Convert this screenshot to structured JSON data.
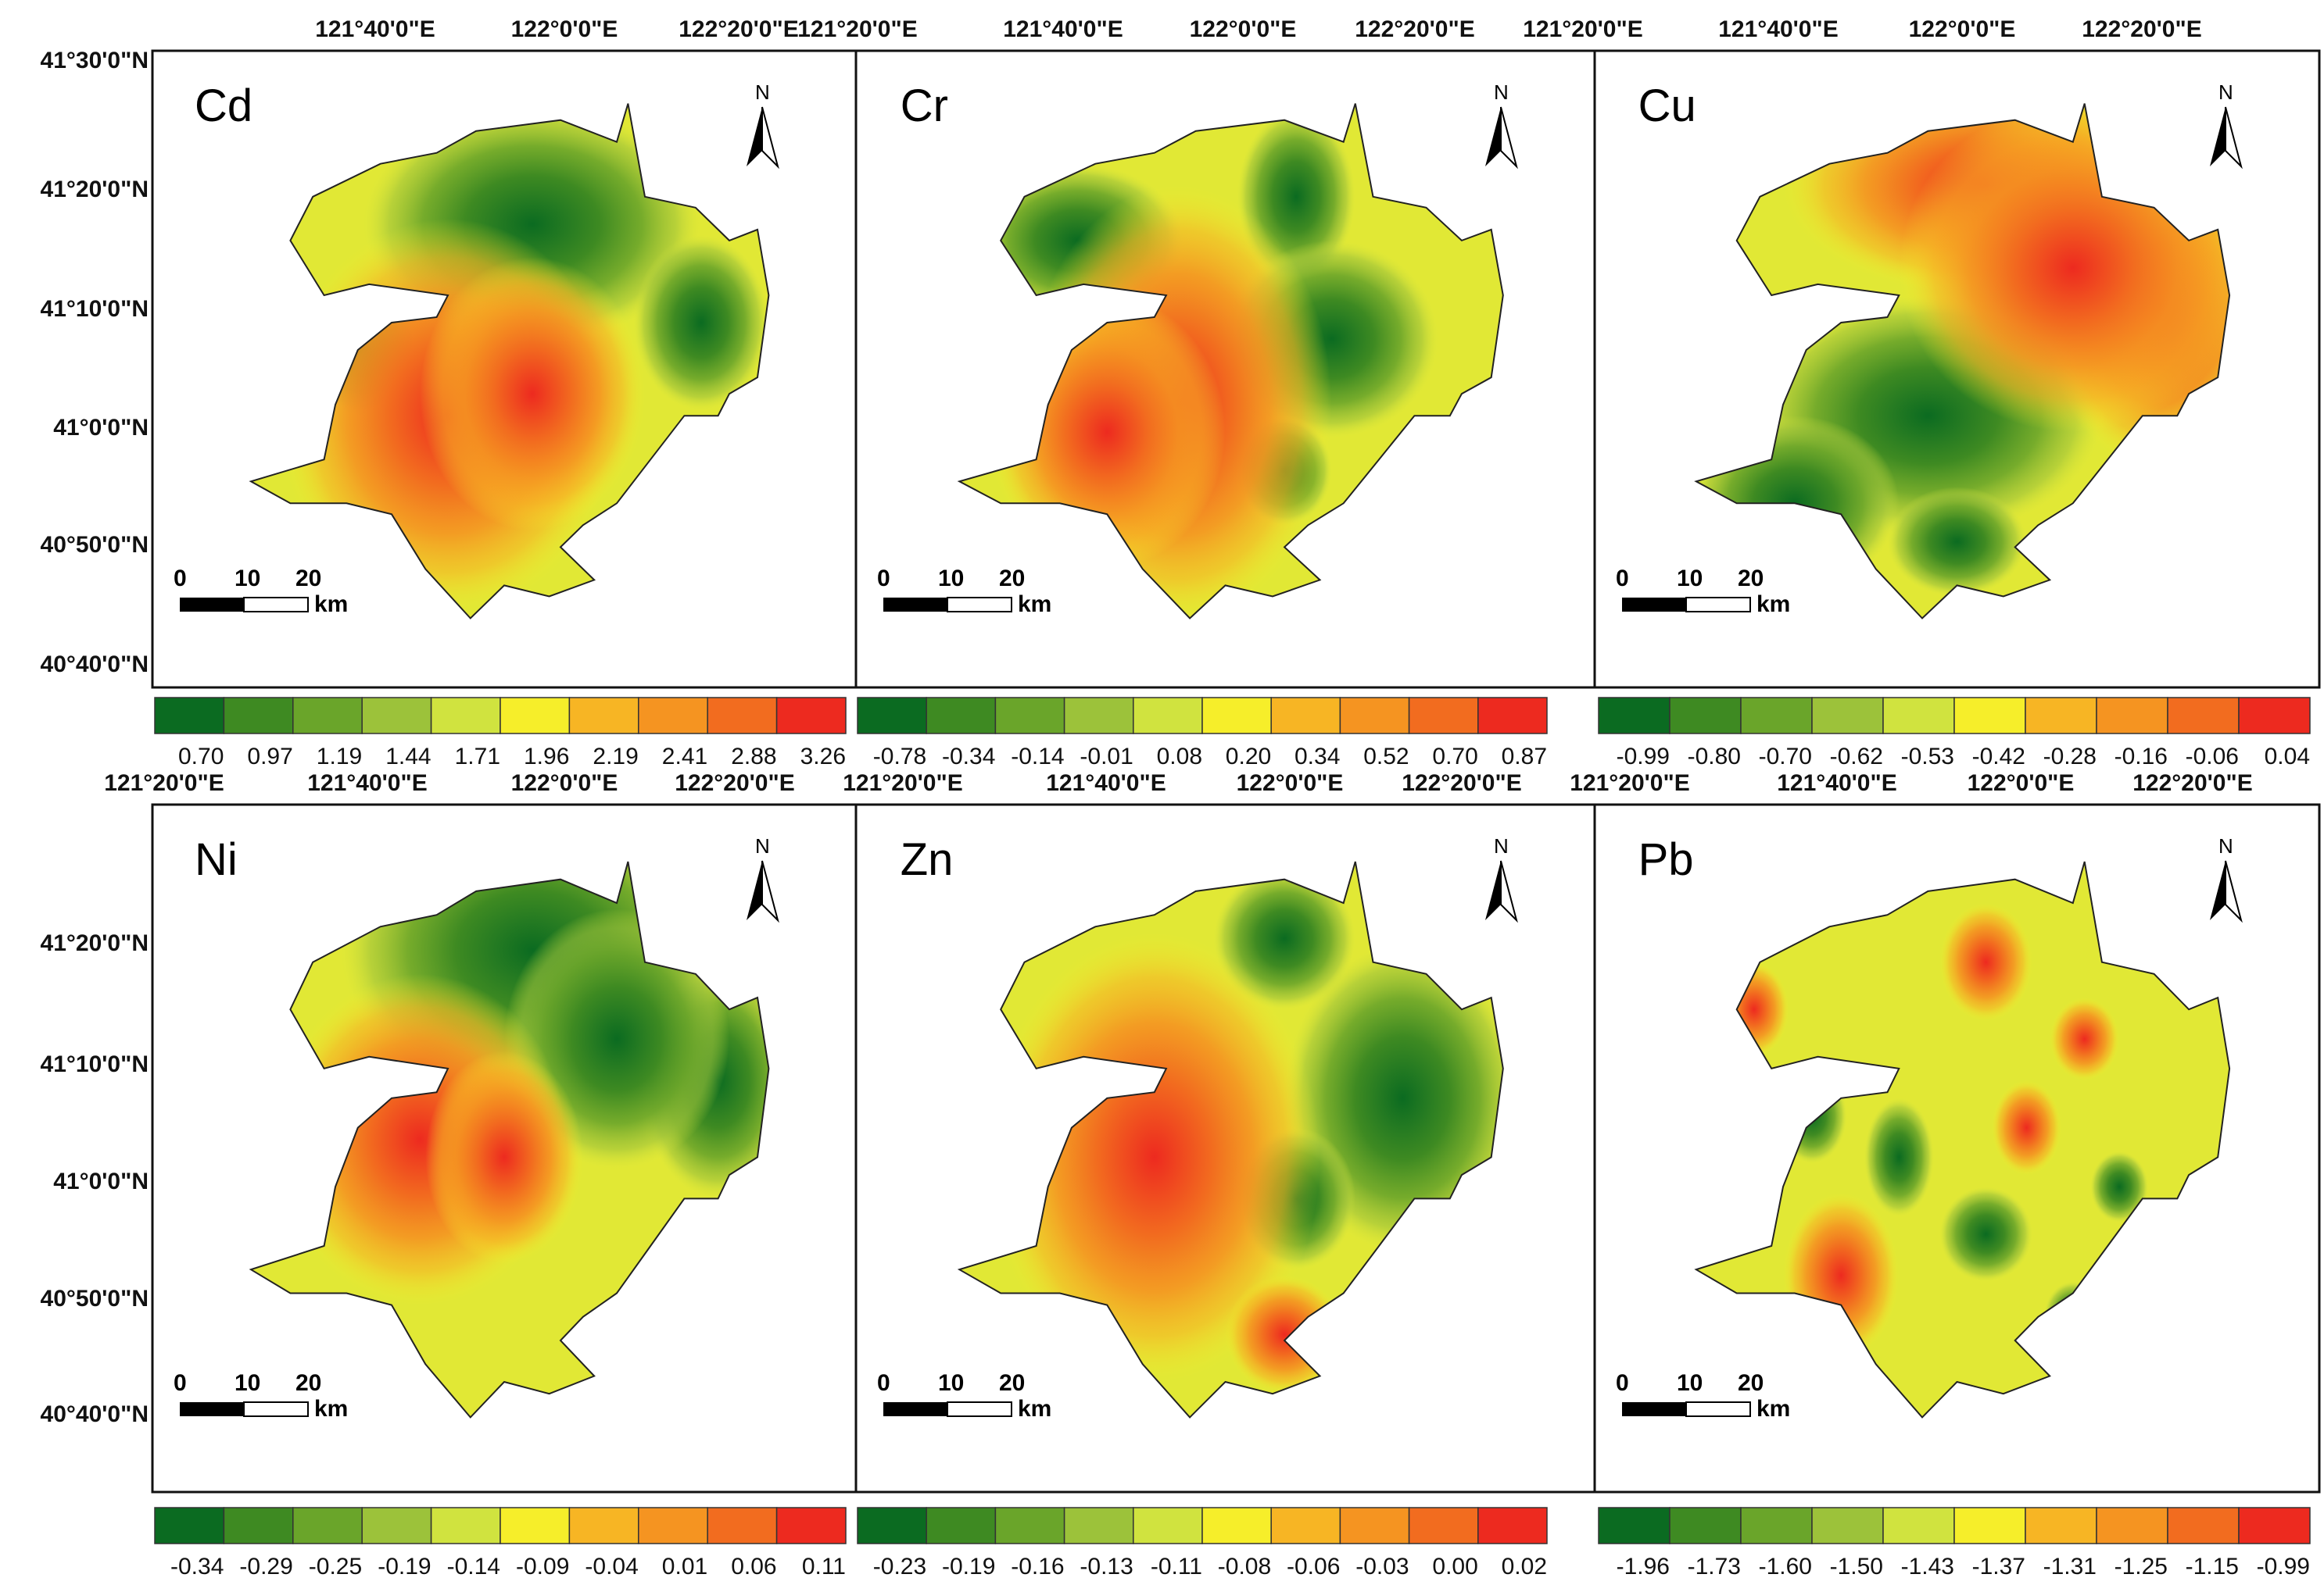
{
  "figure": {
    "panels": [
      {
        "element": "Cd",
        "lon_labels": [
          "121°40'0\"E",
          "122°0'0\"E",
          "122°20'0\"E"
        ],
        "lat_labels": [
          "41°30'0\"N",
          "41°20'0\"N",
          "41°10'0\"N",
          "41°0'0\"N",
          "40°50'0\"N",
          "40°40'0\"N"
        ],
        "hot": [
          [
            0.4,
            0.62,
            0.3,
            0.36
          ],
          [
            0.55,
            0.58,
            0.2,
            0.25
          ]
        ],
        "cool": [
          [
            0.55,
            0.27,
            0.3,
            0.22
          ],
          [
            0.85,
            0.45,
            0.12,
            0.16
          ],
          [
            0.25,
            0.5,
            0.1,
            0.12
          ]
        ],
        "legend": [
          "0.70",
          "0.97",
          "1.19",
          "1.44",
          "1.71",
          "1.96",
          "2.19",
          "2.41",
          "2.88",
          "3.26"
        ]
      },
      {
        "element": "Cr",
        "lon_labels": [
          "121°20'0\"E",
          "121°40'0\"E",
          "122°0'0\"E",
          "122°20'0\"E"
        ],
        "lat_labels": [],
        "hot": [
          [
            0.42,
            0.6,
            0.26,
            0.4
          ],
          [
            0.3,
            0.65,
            0.2,
            0.25
          ]
        ],
        "cool": [
          [
            0.25,
            0.3,
            0.18,
            0.14
          ],
          [
            0.62,
            0.22,
            0.1,
            0.16
          ],
          [
            0.68,
            0.48,
            0.18,
            0.18
          ],
          [
            0.6,
            0.72,
            0.08,
            0.1
          ]
        ],
        "legend": [
          "-0.78",
          "-0.34",
          "-0.14",
          "-0.01",
          "0.08",
          "0.20",
          "0.34",
          "0.52",
          "0.70",
          "0.87"
        ]
      },
      {
        "element": "Cu",
        "lon_labels": [
          "121°20'0\"E",
          "121°40'0\"E",
          "122°0'0\"E",
          "122°20'0\"E"
        ],
        "lat_labels": [],
        "hot": [
          [
            0.85,
            0.42,
            0.2,
            0.3
          ],
          [
            0.55,
            0.2,
            0.35,
            0.2
          ],
          [
            0.7,
            0.35,
            0.3,
            0.3
          ]
        ],
        "cool": [
          [
            0.45,
            0.62,
            0.3,
            0.22
          ],
          [
            0.22,
            0.78,
            0.18,
            0.16
          ],
          [
            0.5,
            0.85,
            0.12,
            0.1
          ]
        ],
        "legend": [
          "-0.99",
          "-0.80",
          "-0.70",
          "-0.62",
          "-0.53",
          "-0.42",
          "-0.28",
          "-0.16",
          "-0.06",
          "0.04"
        ]
      },
      {
        "element": "Ni",
        "lon_labels": [
          "121°20'0\"E",
          "121°40'0\"E",
          "122°0'0\"E",
          "122°20'0\"E"
        ],
        "lat_labels": [
          "41°20'0\"N",
          "41°10'0\"N",
          "41°0'0\"N",
          "40°50'0\"N",
          "40°40'0\"N"
        ],
        "hot": [
          [
            0.35,
            0.52,
            0.26,
            0.28
          ],
          [
            0.5,
            0.55,
            0.14,
            0.18
          ]
        ],
        "cool": [
          [
            0.55,
            0.2,
            0.34,
            0.25
          ],
          [
            0.88,
            0.42,
            0.14,
            0.2
          ],
          [
            0.7,
            0.35,
            0.2,
            0.22
          ]
        ],
        "legend": [
          "-0.34",
          "-0.29",
          "-0.25",
          "-0.19",
          "-0.14",
          "-0.09",
          "-0.04",
          "0.01",
          "0.06",
          "0.11"
        ]
      },
      {
        "element": "Zn",
        "lon_labels": [
          "121°20'0\"E",
          "121°40'0\"E",
          "122°0'0\"E",
          "122°20'0\"E"
        ],
        "lat_labels": [],
        "hot": [
          [
            0.38,
            0.55,
            0.28,
            0.38
          ],
          [
            0.6,
            0.85,
            0.1,
            0.1
          ]
        ],
        "cool": [
          [
            0.6,
            0.18,
            0.12,
            0.12
          ],
          [
            0.8,
            0.45,
            0.2,
            0.26
          ],
          [
            0.62,
            0.62,
            0.1,
            0.12
          ]
        ],
        "legend": [
          "-0.23",
          "-0.19",
          "-0.16",
          "-0.13",
          "-0.11",
          "-0.08",
          "-0.06",
          "-0.03",
          "0.00",
          "0.02"
        ]
      },
      {
        "element": "Pb",
        "lon_labels": [
          "121°20'0\"E",
          "121°40'0\"E",
          "122°0'0\"E",
          "122°20'0\"E"
        ],
        "lat_labels": [],
        "hot": [
          [
            0.3,
            0.75,
            0.1,
            0.14
          ],
          [
            0.55,
            0.22,
            0.08,
            0.1
          ],
          [
            0.62,
            0.5,
            0.06,
            0.08
          ],
          [
            0.15,
            0.3,
            0.06,
            0.08
          ],
          [
            0.72,
            0.35,
            0.06,
            0.07
          ]
        ],
        "cool": [
          [
            0.55,
            0.68,
            0.08,
            0.08
          ],
          [
            0.4,
            0.55,
            0.06,
            0.1
          ],
          [
            0.7,
            0.82,
            0.05,
            0.06
          ],
          [
            0.25,
            0.48,
            0.06,
            0.08
          ],
          [
            0.78,
            0.6,
            0.05,
            0.06
          ]
        ],
        "legend": [
          "-1.96",
          "-1.73",
          "-1.60",
          "-1.50",
          "-1.43",
          "-1.37",
          "-1.31",
          "-1.25",
          "-1.15",
          "-0.99"
        ]
      }
    ],
    "north_label": "N",
    "scale_labels": [
      "0",
      "10",
      "20"
    ],
    "scale_unit": "km",
    "palette": [
      "#0b6b21",
      "#3e8a22",
      "#6aa52a",
      "#9cc23a",
      "#d0e33f",
      "#f6ee2a",
      "#f7b524",
      "#f59421",
      "#f26c1f",
      "#ed2a1f"
    ]
  }
}
